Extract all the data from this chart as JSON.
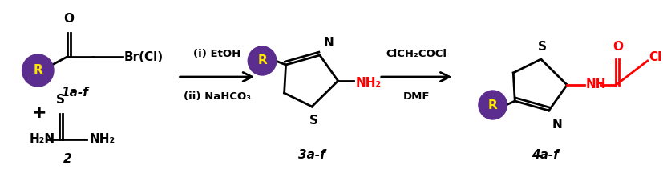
{
  "bg_color": "#ffffff",
  "purple_color": "#5B2D8E",
  "yellow_color": "#FFE600",
  "red_color": "#FF0000",
  "black_color": "#000000",
  "reagent1_line1": "(i) EtOH",
  "reagent1_line2": "(ii) NaHCO₃",
  "reagent2_line1": "ClCH₂COCl",
  "reagent2_line2": "DMF",
  "label1": "1a-f",
  "label2": "2",
  "label3": "3a-f",
  "label4": "4a-f",
  "plus_sign": "+",
  "figsize": [
    8.27,
    2.16
  ],
  "dpi": 100
}
